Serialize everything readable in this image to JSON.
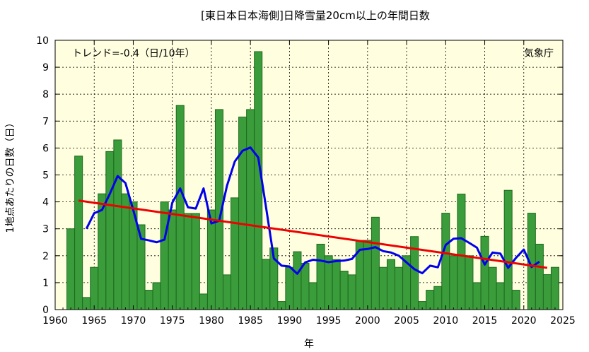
{
  "chart_data": {
    "type": "bar",
    "title": "[東日本日本海側]日降雪量20cm以上の年間日数",
    "xlabel": "年",
    "ylabel": "1地点あたりの日数（日）",
    "trend_text": "トレンド=-0.4（日/10年）",
    "credit": "気象庁",
    "xlim": [
      1960,
      2025
    ],
    "ylim": [
      0,
      10
    ],
    "x_ticks": [
      1960,
      1965,
      1970,
      1975,
      1980,
      1985,
      1990,
      1995,
      2000,
      2005,
      2010,
      2015,
      2020,
      2025
    ],
    "y_ticks": [
      0,
      1,
      2,
      3,
      4,
      5,
      6,
      7,
      8,
      9,
      10
    ],
    "grid": true,
    "colors": {
      "bar": "#3a9c3a",
      "bar_edge": "#1f6a1f",
      "moving_average": "#0000ee",
      "trend": "#ee0000",
      "plot_bg": "#ffffe0"
    },
    "series": [
      {
        "type": "bar",
        "x": [
          1962,
          1963,
          1964,
          1965,
          1966,
          1967,
          1968,
          1969,
          1970,
          1971,
          1972,
          1973,
          1974,
          1975,
          1976,
          1977,
          1978,
          1979,
          1980,
          1981,
          1982,
          1983,
          1984,
          1985,
          1986,
          1987,
          1988,
          1989,
          1990,
          1991,
          1992,
          1993,
          1994,
          1995,
          1996,
          1997,
          1998,
          1999,
          2000,
          2001,
          2002,
          2003,
          2004,
          2005,
          2006,
          2007,
          2008,
          2009,
          2010,
          2011,
          2012,
          2013,
          2014,
          2015,
          2016,
          2017,
          2018,
          2019,
          2020,
          2021,
          2022,
          2023,
          2024
        ],
        "values": [
          3.0,
          5.7,
          0.45,
          1.57,
          4.3,
          5.87,
          6.3,
          4.3,
          4.0,
          3.15,
          0.72,
          1.0,
          4.0,
          3.7,
          7.58,
          3.57,
          3.57,
          0.58,
          3.7,
          7.43,
          1.29,
          4.15,
          7.15,
          7.43,
          9.58,
          1.87,
          2.29,
          0.3,
          1.57,
          2.15,
          1.72,
          1.0,
          2.43,
          2.0,
          1.86,
          1.43,
          1.29,
          2.57,
          2.57,
          3.43,
          1.57,
          1.86,
          1.57,
          2.0,
          2.71,
          0.3,
          0.72,
          0.86,
          3.58,
          2.0,
          4.29,
          2.0,
          1.0,
          2.72,
          1.57,
          1.0,
          4.43,
          0.72,
          0.0,
          3.58,
          2.43,
          1.3,
          1.57
        ]
      },
      {
        "type": "line",
        "x": [
          1964,
          1965,
          1966,
          1967,
          1968,
          1969,
          1970,
          1971,
          1972,
          1973,
          1974,
          1975,
          1976,
          1977,
          1978,
          1979,
          1980,
          1981,
          1982,
          1983,
          1984,
          1985,
          1986,
          1987,
          1988,
          1989,
          1990,
          1991,
          1992,
          1993,
          1994,
          1995,
          1996,
          1997,
          1998,
          1999,
          2000,
          2001,
          2002,
          2003,
          2004,
          2005,
          2006,
          2007,
          2008,
          2009,
          2010,
          2011,
          2012,
          2013,
          2014,
          2015,
          2016,
          2017,
          2018,
          2019,
          2020,
          2021,
          2022
        ],
        "values": [
          3.0,
          3.58,
          3.7,
          4.3,
          4.96,
          4.7,
          3.7,
          2.63,
          2.57,
          2.5,
          2.6,
          3.97,
          4.5,
          3.8,
          3.75,
          4.5,
          3.2,
          3.3,
          4.6,
          5.5,
          5.9,
          6.02,
          5.65,
          3.8,
          1.9,
          1.63,
          1.6,
          1.33,
          1.75,
          1.85,
          1.82,
          1.76,
          1.8,
          1.82,
          1.88,
          2.22,
          2.25,
          2.32,
          2.17,
          2.12,
          2.0,
          1.75,
          1.5,
          1.35,
          1.63,
          1.57,
          2.4,
          2.63,
          2.65,
          2.48,
          2.3,
          1.67,
          2.12,
          2.08,
          1.55,
          1.92,
          2.23,
          1.58,
          1.78
        ]
      },
      {
        "type": "line",
        "x": [
          1963,
          2023
        ],
        "values": [
          4.05,
          1.55
        ]
      }
    ]
  }
}
